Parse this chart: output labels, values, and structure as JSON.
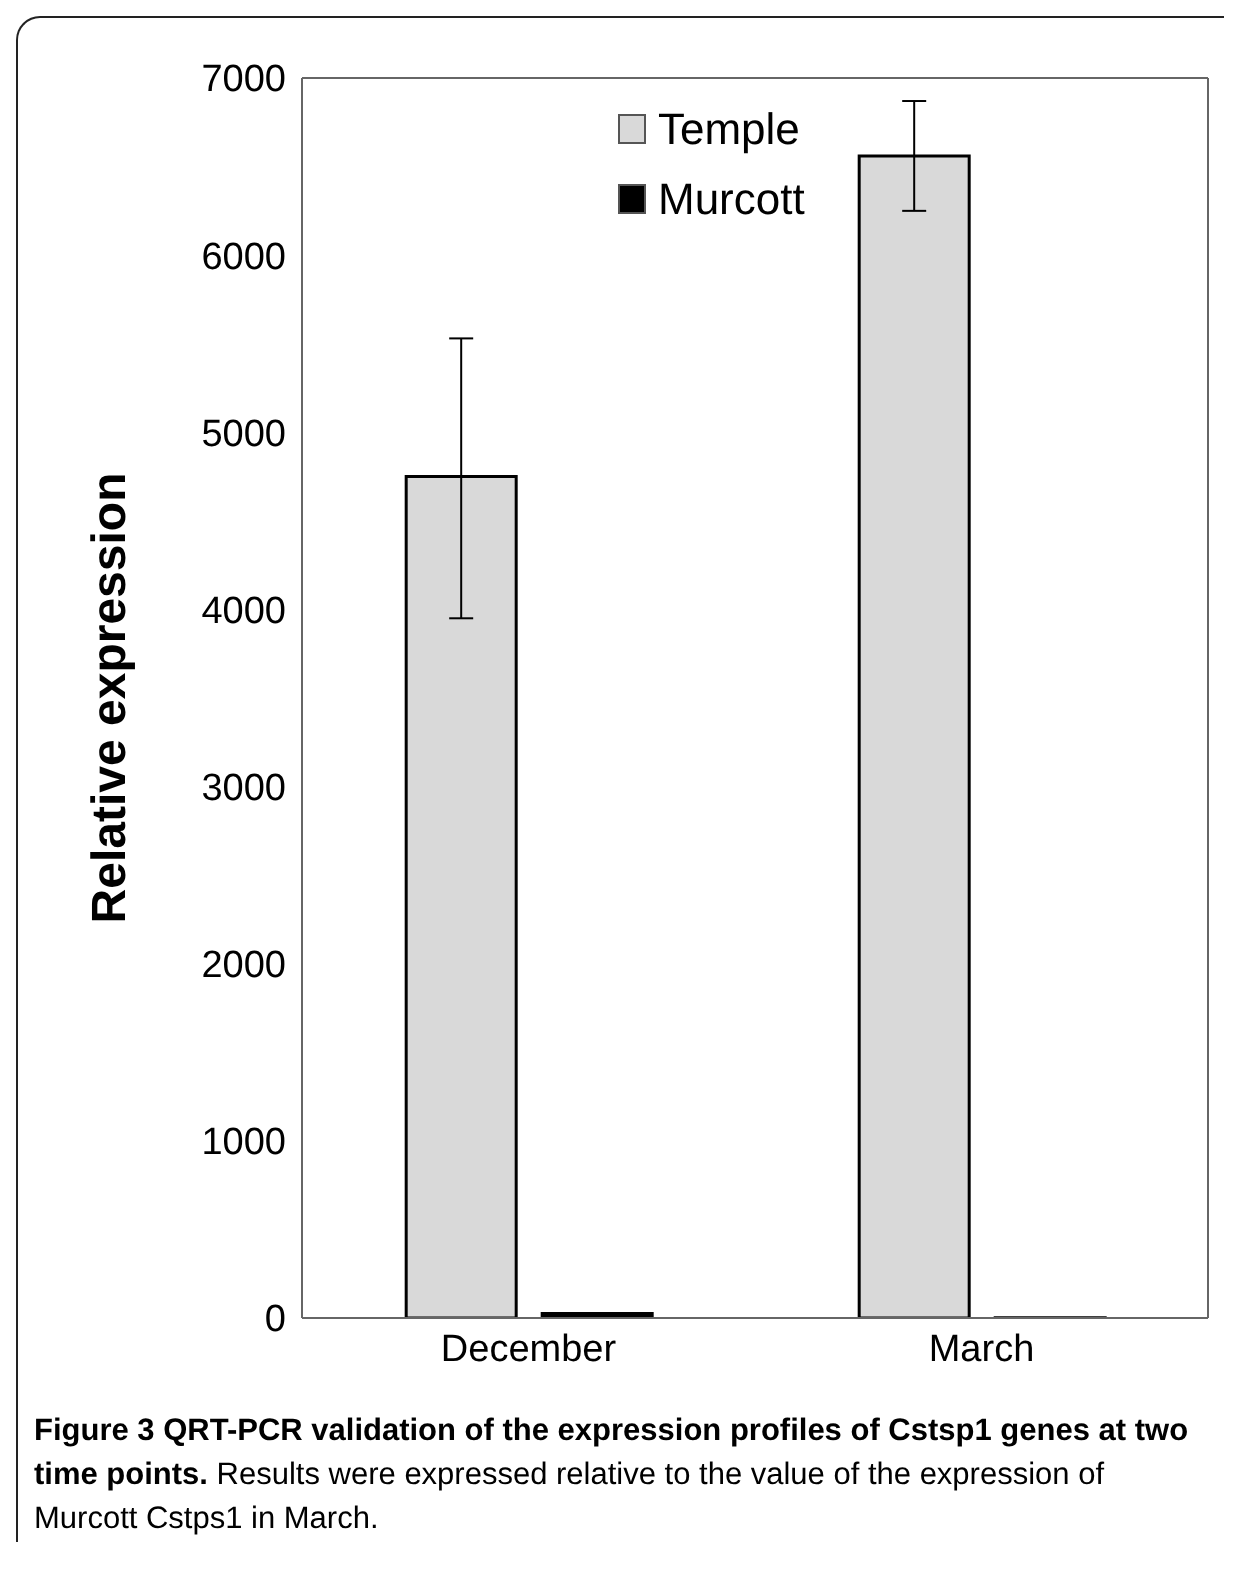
{
  "chart_data": {
    "type": "bar",
    "title": "Figure 3 QRT-PCR validation of the expression profiles of Cstsp1 genes at two time points.",
    "annotations": [
      "Results were expressed relative to the value of the expression of Murcott Cstps1 in March."
    ],
    "ylabel": "Relative expression",
    "categories": [
      "December",
      "March"
    ],
    "series": [
      {
        "name": "Temple",
        "color": "#d9d9d9",
        "values": [
          4750,
          6560
        ],
        "errors": [
          [
            3950,
            5530
          ],
          [
            6250,
            6870
          ]
        ]
      },
      {
        "name": "Murcott",
        "color": "#000000",
        "values": [
          25,
          1
        ]
      }
    ],
    "ylim": [
      0,
      7000
    ],
    "yticks": [
      0,
      1000,
      2000,
      3000,
      4000,
      5000,
      6000,
      7000
    ],
    "grid": false,
    "legend": "top"
  }
}
